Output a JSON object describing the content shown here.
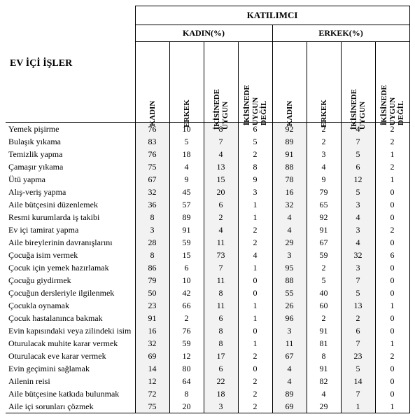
{
  "headers": {
    "rowLabel": "EV İÇİ İŞLER",
    "participant": "KATILIMCI",
    "groupF": "KADIN(%)",
    "groupM": "ERKEK(%)",
    "cols": {
      "kadin": "KADIN",
      "erkek": "ERKEK",
      "ikisinedeUygun": "İKİSİNEDE\nUYGUN",
      "ikisinedeUygunDegil": "İKİSİNEDE\nUYGUN\nDEĞİL"
    }
  },
  "columnWidths": {
    "label": 185,
    "data": 49
  },
  "colors": {
    "background": "#ffffff",
    "shadeBackground": "#f2f2f2",
    "text": "#000000",
    "border": "#000000"
  },
  "fontSizes": {
    "mainHeader": 13,
    "groupHeader": 12,
    "rowLabel": 14,
    "colHeader": 11,
    "data": 12
  },
  "rows": [
    {
      "label": "Yemek pişirme",
      "f": [
        76,
        10,
        8,
        6
      ],
      "m": [
        92,
        2,
        4,
        2
      ]
    },
    {
      "label": "Bulaşık yıkama",
      "f": [
        83,
        5,
        7,
        5
      ],
      "m": [
        89,
        2,
        7,
        2
      ]
    },
    {
      "label": "Temizlik yapma",
      "f": [
        76,
        18,
        4,
        2
      ],
      "m": [
        91,
        3,
        5,
        1
      ]
    },
    {
      "label": "Çamaşır yıkama",
      "f": [
        75,
        4,
        13,
        8
      ],
      "m": [
        88,
        4,
        6,
        2
      ]
    },
    {
      "label": "Ütü yapma",
      "f": [
        67,
        9,
        15,
        9
      ],
      "m": [
        78,
        9,
        12,
        1
      ]
    },
    {
      "label": "Alış-veriş yapma",
      "f": [
        32,
        45,
        20,
        3
      ],
      "m": [
        16,
        79,
        5,
        0
      ]
    },
    {
      "label": "Aile bütçesini düzenlemek",
      "f": [
        36,
        57,
        6,
        1
      ],
      "m": [
        32,
        65,
        3,
        0
      ]
    },
    {
      "label": "Resmi kurumlarda iş takibi",
      "f": [
        8,
        89,
        2,
        1
      ],
      "m": [
        4,
        92,
        4,
        0
      ]
    },
    {
      "label": "Ev içi tamirat yapma",
      "f": [
        3,
        91,
        4,
        2
      ],
      "m": [
        4,
        91,
        3,
        2
      ]
    },
    {
      "label": "Aile bireylerinin davranışlarını",
      "f": [
        28,
        59,
        11,
        2
      ],
      "m": [
        29,
        67,
        4,
        0
      ]
    },
    {
      "label": "Çocuğa isim vermek",
      "f": [
        8,
        15,
        73,
        4
      ],
      "m": [
        3,
        59,
        32,
        6
      ]
    },
    {
      "label": "Çocuk için yemek hazırlamak",
      "f": [
        86,
        6,
        7,
        1
      ],
      "m": [
        95,
        2,
        3,
        0
      ]
    },
    {
      "label": "Çocuğu giydirmek",
      "f": [
        79,
        10,
        11,
        0
      ],
      "m": [
        88,
        5,
        7,
        0
      ]
    },
    {
      "label": "Çocuğun dersleriyle ilgilenmek",
      "f": [
        50,
        42,
        8,
        0
      ],
      "m": [
        55,
        40,
        5,
        0
      ]
    },
    {
      "label": "Çocukla oynamak",
      "f": [
        23,
        66,
        11,
        1
      ],
      "m": [
        26,
        60,
        13,
        1
      ]
    },
    {
      "label": "Çocuk hastalanınca bakmak",
      "f": [
        91,
        2,
        6,
        1
      ],
      "m": [
        96,
        2,
        2,
        0
      ]
    },
    {
      "label": "Evin kapısındaki veya zilindeki isim",
      "f": [
        16,
        76,
        8,
        0
      ],
      "m": [
        3,
        91,
        6,
        0
      ]
    },
    {
      "label": "Oturulacak muhite karar vermek",
      "f": [
        32,
        59,
        8,
        1
      ],
      "m": [
        11,
        81,
        7,
        1
      ]
    },
    {
      "label": "Oturulacak eve karar vermek",
      "f": [
        69,
        12,
        17,
        2
      ],
      "m": [
        67,
        8,
        23,
        2
      ]
    },
    {
      "label": "Evin geçimini sağlamak",
      "f": [
        14,
        80,
        6,
        0
      ],
      "m": [
        4,
        91,
        5,
        0
      ]
    },
    {
      "label": "Ailenin reisi",
      "f": [
        12,
        64,
        22,
        2
      ],
      "m": [
        4,
        82,
        14,
        0
      ]
    },
    {
      "label": "Aile bütçesine katkıda bulunmak",
      "f": [
        72,
        8,
        18,
        2
      ],
      "m": [
        89,
        4,
        7,
        0
      ]
    },
    {
      "label": "Aile içi sorunları çözmek",
      "f": [
        75,
        20,
        3,
        2
      ],
      "m": [
        69,
        29,
        1,
        1
      ]
    }
  ]
}
